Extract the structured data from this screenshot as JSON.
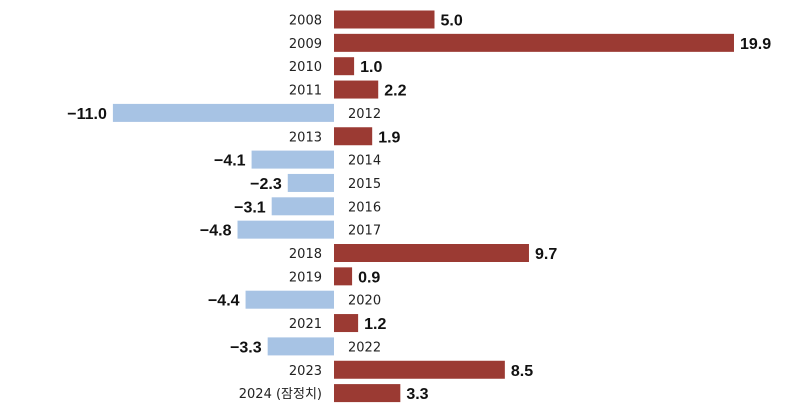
{
  "chart_data": {
    "type": "bar",
    "orientation": "horizontal",
    "title": "",
    "xlabel": "",
    "ylabel": "",
    "categories": [
      "2008",
      "2009",
      "2010",
      "2011",
      "2012",
      "2013",
      "2014",
      "2015",
      "2016",
      "2017",
      "2018",
      "2019",
      "2020",
      "2021",
      "2022",
      "2023",
      "2024 (잠정치)"
    ],
    "values": [
      5.0,
      19.9,
      1.0,
      2.2,
      -11.0,
      1.9,
      -4.1,
      -2.3,
      -3.1,
      -4.8,
      9.7,
      0.9,
      -4.4,
      1.2,
      -3.3,
      8.5,
      3.3
    ],
    "value_labels": [
      "5.0",
      "19.9",
      "1.0",
      "2.2",
      "−11.0",
      "1.9",
      "−4.1",
      "−2.3",
      "−3.1",
      "−4.8",
      "9.7",
      "0.9",
      "−4.4",
      "1.2",
      "−3.3",
      "8.5",
      "3.3"
    ],
    "xlim": [
      -11.0,
      19.9
    ],
    "grid": false,
    "legend": "none",
    "colors": {
      "positive": "#9b3a33",
      "negative": "#a7c3e4"
    }
  }
}
